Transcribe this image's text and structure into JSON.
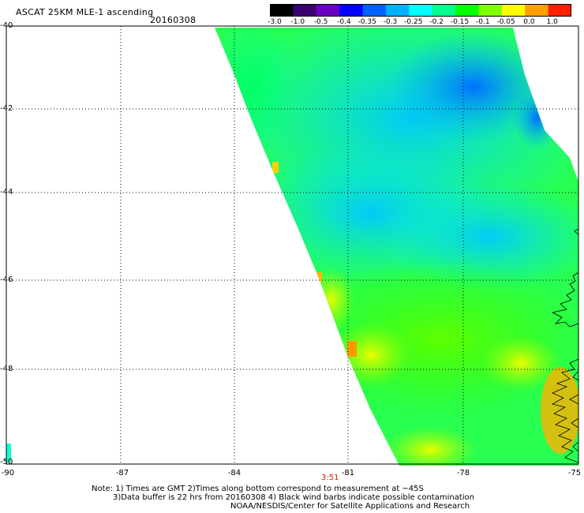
{
  "title": "ASCAT 25KM MLE-1 ascending",
  "date": "20160308",
  "colorbar": {
    "labels": [
      "-3.0",
      "-1.0",
      "-0.5",
      "-0.4",
      "-0.35",
      "-0.3",
      "-0.25",
      "-0.2",
      "-0.15",
      "-0.1",
      "-0.05",
      "0.0",
      "1.0"
    ],
    "colors": [
      "#000000",
      "#3a0070",
      "#6a00c0",
      "#0000ff",
      "#0060ff",
      "#00b0ff",
      "#00ffff",
      "#00ff90",
      "#00ff00",
      "#80ff00",
      "#ffff00",
      "#ffa000",
      "#ff2000"
    ]
  },
  "axes": {
    "lat_labels": [
      "-40",
      "-42",
      "-44",
      "-46",
      "-48",
      "-50"
    ],
    "lon_labels": [
      "-90",
      "-87",
      "-84",
      "-81",
      "-78",
      "-75"
    ],
    "lat_range": [
      -50,
      -40
    ],
    "lon_range": [
      -90,
      -75
    ],
    "grid": "dotted"
  },
  "time_label": "3:51",
  "notes": {
    "line1": "Note: 1) Times are GMT 2)Times along bottom correspond to measurement at ~45S",
    "line2": "3)Data buffer is 22 hrs from 20160308 4) Black wind barbs indicate possible contamination",
    "line3": "NOAA/NESDIS/Center for Satellite Applications and Research"
  }
}
